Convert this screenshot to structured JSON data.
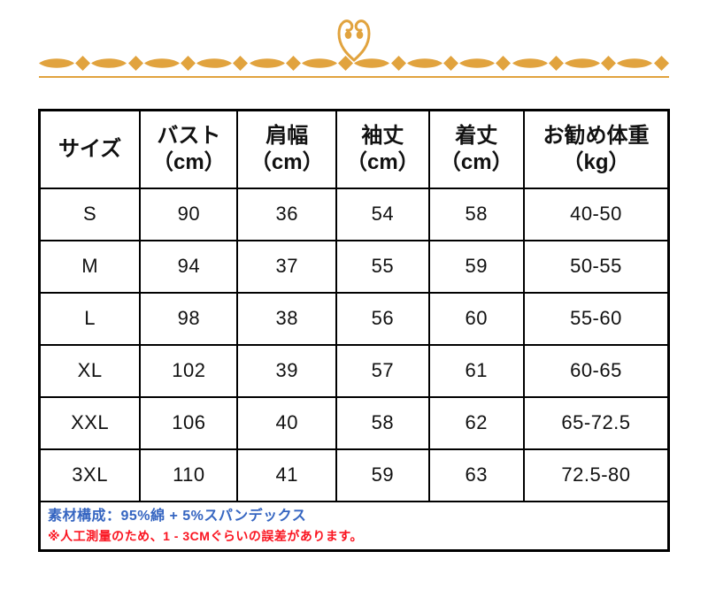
{
  "colors": {
    "gold": "#E1A33E",
    "border": "#000000",
    "text": "#111111",
    "note_blue": "#3565C1",
    "note_red": "#FA1420"
  },
  "table": {
    "columns": [
      {
        "label": "サイズ",
        "unit": ""
      },
      {
        "label": "バスト",
        "unit": "（cm）"
      },
      {
        "label": "肩幅",
        "unit": "（cm）"
      },
      {
        "label": "袖丈",
        "unit": "（cm）"
      },
      {
        "label": "着丈",
        "unit": "（cm）"
      },
      {
        "label": "お勧め体重",
        "unit": "（kg）"
      }
    ],
    "rows": [
      [
        "S",
        "90",
        "36",
        "54",
        "58",
        "40-50"
      ],
      [
        "M",
        "94",
        "37",
        "55",
        "59",
        "50-55"
      ],
      [
        "L",
        "98",
        "38",
        "56",
        "60",
        "55-60"
      ],
      [
        "XL",
        "102",
        "39",
        "57",
        "61",
        "60-65"
      ],
      [
        "XXL",
        "106",
        "40",
        "58",
        "62",
        "65-72.5"
      ],
      [
        "3XL",
        "110",
        "41",
        "59",
        "63",
        "72.5-80"
      ]
    ]
  },
  "notes": {
    "material": "素材構成：95%綿 + 5%スパンデックス",
    "caution": "※人工測量のため、1 - 3CMぐらいの誤差があります。"
  }
}
